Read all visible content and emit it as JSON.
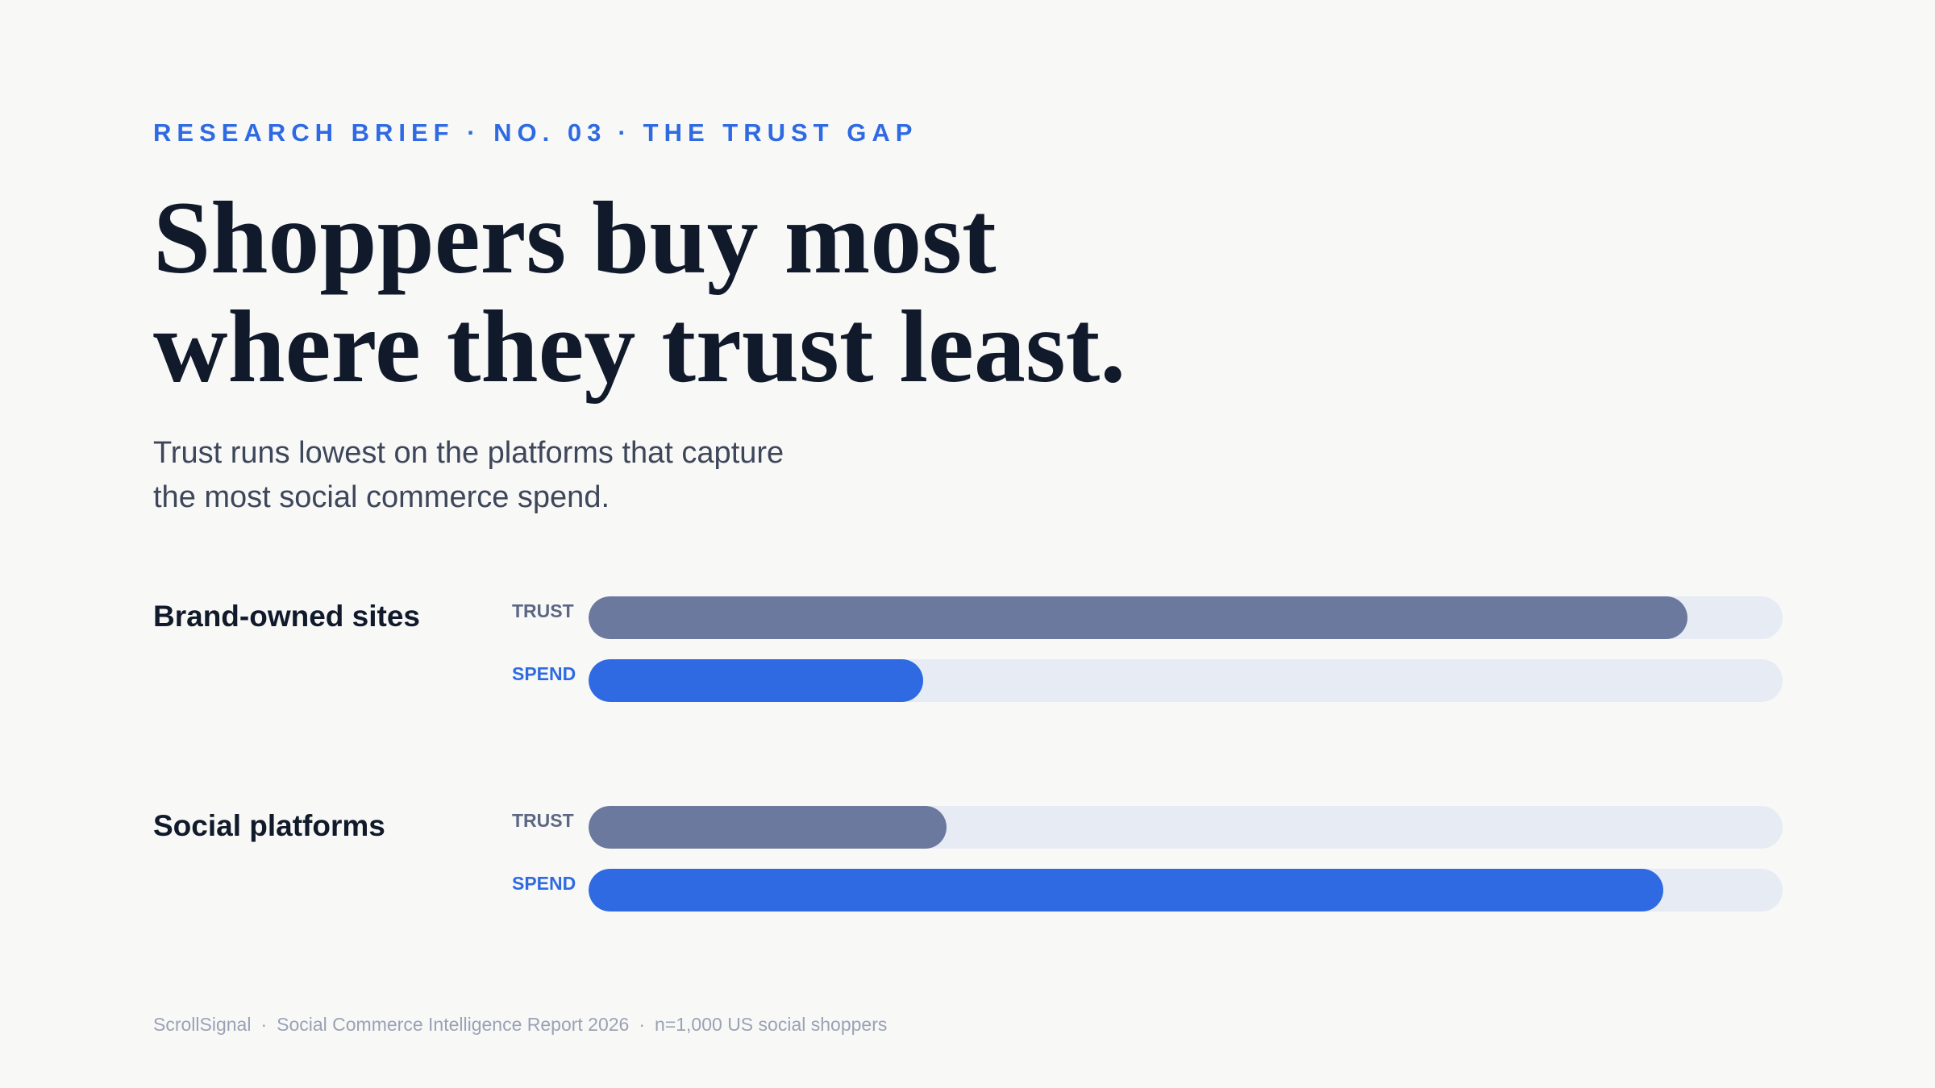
{
  "header": {
    "eyebrow_part1": "RESEARCH BRIEF · NO. 03",
    "eyebrow_separator": "·",
    "eyebrow_part2": "THE TRUST GAP",
    "title_line1": "Shoppers buy most",
    "title_line2": "where they trust least.",
    "subtitle_line1": "Trust runs lowest on the platforms that capture",
    "subtitle_line2": "the most social commerce spend."
  },
  "chart_data": {
    "type": "bar",
    "orientation": "horizontal",
    "value_scale": "fraction of full track (0–1)",
    "xlim": [
      0,
      1
    ],
    "categories": [
      "Brand-owned sites",
      "Social platforms"
    ],
    "series": [
      {
        "name": "TRUST",
        "values": [
          0.92,
          0.3
        ]
      },
      {
        "name": "SPEND",
        "values": [
          0.28,
          0.9
        ]
      }
    ],
    "colors": {
      "TRUST": "#6a799d",
      "SPEND": "#2f6ae3",
      "track": "#e7ebf4"
    },
    "grid": false,
    "legend": "inline labels per bar"
  },
  "footer": {
    "source": "ScrollSignal",
    "report": "Social Commerce Intelligence Report 2026",
    "sample": "n=1,000 US social shoppers",
    "separator": "·"
  }
}
